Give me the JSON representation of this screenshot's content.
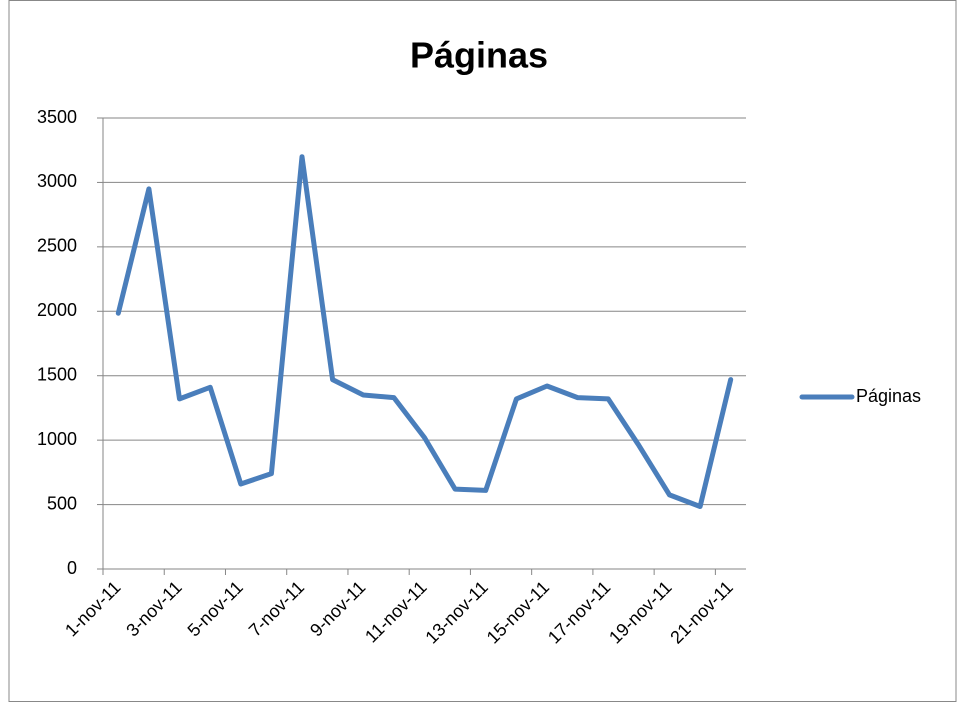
{
  "chart_data": {
    "type": "line",
    "title": "Páginas",
    "categories": [
      "1-nov-11",
      null,
      "3-nov-11",
      null,
      "5-nov-11",
      null,
      "7-nov-11",
      null,
      "9-nov-11",
      null,
      "11-nov-11",
      null,
      "13-nov-11",
      null,
      "15-nov-11",
      null,
      "17-nov-11",
      null,
      "19-nov-11",
      null,
      "21-nov-11"
    ],
    "series": [
      {
        "name": "Páginas",
        "color": "#4a7ebb",
        "values": [
          1985,
          2950,
          1320,
          1410,
          660,
          740,
          3200,
          1470,
          1350,
          1330,
          1020,
          620,
          610,
          1320,
          1420,
          1330,
          1320,
          960,
          575,
          485,
          1470
        ]
      }
    ],
    "ylim": [
      0,
      3500
    ],
    "yticks": [
      0,
      500,
      1000,
      1500,
      2000,
      2500,
      3000,
      3500
    ],
    "grid": true,
    "legend": "right"
  }
}
